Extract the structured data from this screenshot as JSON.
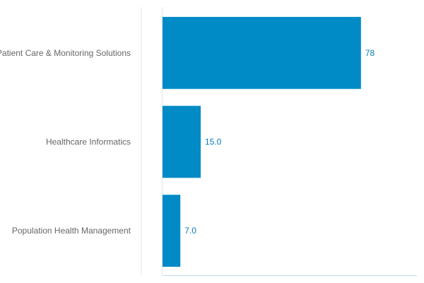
{
  "chart_data": {
    "type": "bar",
    "orientation": "horizontal",
    "categories": [
      "Patient Care & Monitoring Solutions",
      "Healthcare Informatics",
      "Population Health Management"
    ],
    "values": [
      78,
      15.0,
      7.0
    ],
    "value_labels": [
      "78",
      "15.0",
      "7.0"
    ],
    "title": "",
    "xlabel": "",
    "ylabel": "",
    "xlim": [
      0,
      100
    ],
    "grid": false,
    "legend": "none",
    "colors": {
      "bar": "#008ac6",
      "value_text": "#0a7bb2",
      "category_text": "#666666",
      "axis_line": "#bcd8e6",
      "left_divider": "#e6e6e6"
    }
  }
}
